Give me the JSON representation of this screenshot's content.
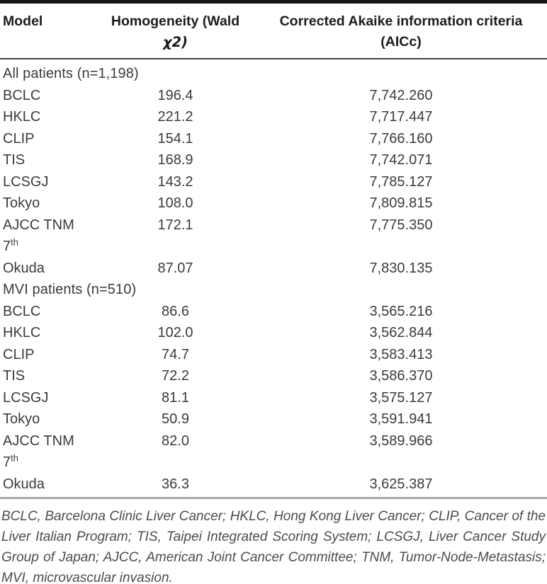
{
  "table": {
    "columns": [
      {
        "line1": "Model",
        "line2": ""
      },
      {
        "line1": "Homogeneity (Wald",
        "line2": "χ2)"
      },
      {
        "line1": "Corrected Akaike information criteria",
        "line2": "(AICc)"
      }
    ],
    "sections": [
      {
        "title": "All patients (n=1,198)",
        "rows": [
          {
            "model": "BCLC",
            "wald": "196.4",
            "aicc": "7,742.260"
          },
          {
            "model": "HKLC",
            "wald": "221.2",
            "aicc": "7,717.447"
          },
          {
            "model": "CLIP",
            "wald": "154.1",
            "aicc": "7,766.160"
          },
          {
            "model": "TIS",
            "wald": "168.9",
            "aicc": "7,742.071"
          },
          {
            "model": "LCSGJ",
            "wald": "143.2",
            "aicc": "7,785.127"
          },
          {
            "model": "Tokyo",
            "wald": "108.0",
            "aicc": "7,809.815"
          },
          {
            "model": "AJCC TNM",
            "model_line2": "7",
            "model_line2_sup": "th",
            "wald": "172.1",
            "aicc": "7,775.350"
          },
          {
            "model": "Okuda",
            "wald": "87.07",
            "aicc": "7,830.135"
          }
        ]
      },
      {
        "title": "MVI patients (n=510)",
        "rows": [
          {
            "model": "BCLC",
            "wald": "86.6",
            "aicc": "3,565.216"
          },
          {
            "model": "HKLC",
            "wald": "102.0",
            "aicc": "3,562.844"
          },
          {
            "model": "CLIP",
            "wald": "74.7",
            "aicc": "3,583.413"
          },
          {
            "model": "TIS",
            "wald": "72.2",
            "aicc": "3,586.370"
          },
          {
            "model": "LCSGJ",
            "wald": "81.1",
            "aicc": "3,575.127"
          },
          {
            "model": "Tokyo",
            "wald": "50.9",
            "aicc": "3,591.941"
          },
          {
            "model": "AJCC TNM",
            "model_line2": "7",
            "model_line2_sup": "th",
            "wald": "82.0",
            "aicc": "3,589.966"
          },
          {
            "model": "Okuda",
            "wald": "36.3",
            "aicc": "3,625.387"
          }
        ]
      }
    ]
  },
  "footnote": "BCLC, Barcelona Clinic Liver Cancer; HKLC, Hong Kong Liver Cancer; CLIP, Cancer of the Liver Italian Program; TIS, Taipei Integrated Scoring System; LCSGJ, Liver Cancer Study Group of Japan; AJCC, American Joint Cancer Committee; TNM, Tumor-Node-Metastasis; MVI, microvascular invasion."
}
